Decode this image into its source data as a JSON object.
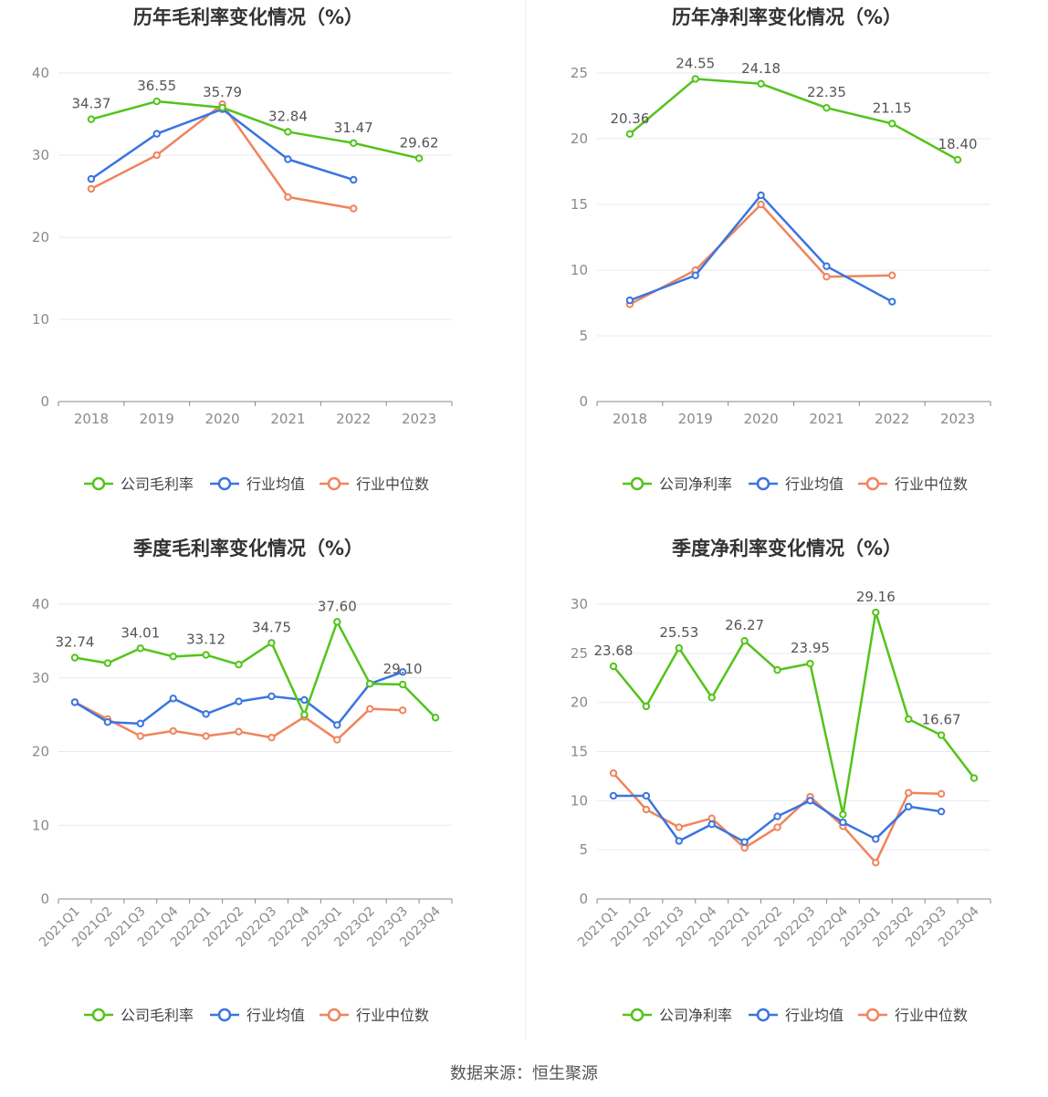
{
  "colors": {
    "company": "#52c41a",
    "avg": "#3a74e0",
    "median": "#f0845c",
    "grid": "#e6e9f0",
    "axis": "#8a8a8a",
    "title": "#333333",
    "label": "#555555"
  },
  "source_text": "数据来源：恒生聚源",
  "chart_data": [
    {
      "type": "line",
      "title": "历年毛利率变化情况（%）",
      "categories": [
        "2018",
        "2019",
        "2020",
        "2021",
        "2022",
        "2023"
      ],
      "ylim": [
        0,
        40
      ],
      "yticks": [
        0,
        10,
        20,
        30,
        40
      ],
      "grid": true,
      "legend_position": "bottom",
      "rotate_x_labels": false,
      "series": [
        {
          "name": "公司毛利率",
          "key": "company",
          "values": [
            34.37,
            36.55,
            35.79,
            32.84,
            31.47,
            29.62
          ],
          "labels": [
            "34.37",
            "36.55",
            "35.79",
            "32.84",
            "31.47",
            "29.62"
          ]
        },
        {
          "name": "行业均值",
          "key": "avg",
          "values": [
            27.1,
            32.6,
            35.6,
            29.5,
            27.0,
            null
          ]
        },
        {
          "name": "行业中位数",
          "key": "median",
          "values": [
            25.9,
            30.0,
            36.2,
            24.9,
            23.5,
            null
          ]
        }
      ]
    },
    {
      "type": "line",
      "title": "历年净利率变化情况（%）",
      "categories": [
        "2018",
        "2019",
        "2020",
        "2021",
        "2022",
        "2023"
      ],
      "ylim": [
        0,
        25
      ],
      "yticks": [
        0,
        5,
        10,
        15,
        20,
        25
      ],
      "grid": true,
      "legend_position": "bottom",
      "rotate_x_labels": false,
      "series": [
        {
          "name": "公司净利率",
          "key": "company",
          "values": [
            20.36,
            24.55,
            24.18,
            22.35,
            21.15,
            18.4
          ],
          "labels": [
            "20.36",
            "24.55",
            "24.18",
            "22.35",
            "21.15",
            "18.40"
          ]
        },
        {
          "name": "行业均值",
          "key": "avg",
          "values": [
            7.7,
            9.6,
            15.7,
            10.3,
            7.6,
            null
          ]
        },
        {
          "name": "行业中位数",
          "key": "median",
          "values": [
            7.4,
            10.0,
            15.0,
            9.5,
            9.6,
            null
          ]
        }
      ]
    },
    {
      "type": "line",
      "title": "季度毛利率变化情况（%）",
      "categories": [
        "2021Q1",
        "2021Q2",
        "2021Q3",
        "2021Q4",
        "2022Q1",
        "2022Q2",
        "2022Q3",
        "2022Q4",
        "2023Q1",
        "2023Q2",
        "2023Q3",
        "2023Q4"
      ],
      "ylim": [
        0,
        40
      ],
      "yticks": [
        0,
        10,
        20,
        30,
        40
      ],
      "grid": true,
      "legend_position": "bottom",
      "rotate_x_labels": true,
      "series": [
        {
          "name": "公司毛利率",
          "key": "company",
          "values": [
            32.74,
            32.0,
            34.01,
            32.9,
            33.12,
            31.8,
            34.75,
            25.0,
            37.6,
            29.2,
            29.1,
            24.6
          ],
          "labels": [
            "32.74",
            "",
            "34.01",
            "",
            "33.12",
            "",
            "34.75",
            "",
            "37.60",
            "",
            "29.10",
            ""
          ]
        },
        {
          "name": "行业均值",
          "key": "avg",
          "values": [
            26.7,
            24.0,
            23.8,
            27.2,
            25.1,
            26.8,
            27.5,
            27.0,
            23.6,
            29.2,
            30.8,
            null
          ]
        },
        {
          "name": "行业中位数",
          "key": "median",
          "values": [
            26.7,
            24.4,
            22.1,
            22.8,
            22.1,
            22.7,
            21.9,
            24.7,
            21.6,
            25.8,
            25.6,
            null
          ]
        }
      ]
    },
    {
      "type": "line",
      "title": "季度净利率变化情况（%）",
      "categories": [
        "2021Q1",
        "2021Q2",
        "2021Q3",
        "2021Q4",
        "2022Q1",
        "2022Q2",
        "2022Q3",
        "2022Q4",
        "2023Q1",
        "2023Q2",
        "2023Q3",
        "2023Q4"
      ],
      "ylim": [
        0,
        30
      ],
      "yticks": [
        0,
        5,
        10,
        15,
        20,
        25,
        30
      ],
      "grid": true,
      "legend_position": "bottom",
      "rotate_x_labels": true,
      "series": [
        {
          "name": "公司净利率",
          "key": "company",
          "values": [
            23.68,
            19.6,
            25.53,
            20.5,
            26.27,
            23.3,
            23.95,
            8.6,
            29.16,
            18.3,
            16.67,
            12.3
          ],
          "labels": [
            "23.68",
            "",
            "25.53",
            "",
            "26.27",
            "",
            "23.95",
            "",
            "29.16",
            "",
            "16.67",
            ""
          ]
        },
        {
          "name": "行业均值",
          "key": "avg",
          "values": [
            10.5,
            10.5,
            5.9,
            7.6,
            5.8,
            8.4,
            10.0,
            7.8,
            6.1,
            9.4,
            8.9,
            null
          ]
        },
        {
          "name": "行业中位数",
          "key": "median",
          "values": [
            12.8,
            9.1,
            7.3,
            8.2,
            5.2,
            7.3,
            10.4,
            7.4,
            3.7,
            10.8,
            10.7,
            null
          ]
        }
      ]
    }
  ]
}
